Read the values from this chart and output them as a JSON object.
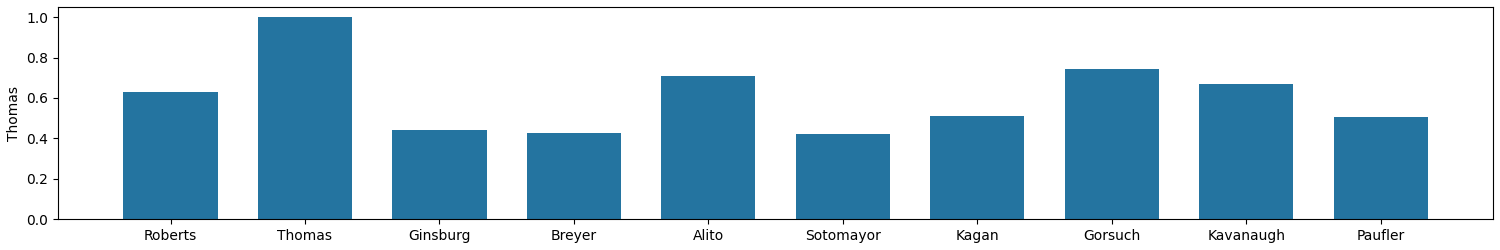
{
  "categories": [
    "Roberts",
    "Thomas",
    "Ginsburg",
    "Breyer",
    "Alito",
    "Sotomayor",
    "Kagan",
    "Gorsuch",
    "Kavanaugh",
    "Paufler"
  ],
  "values": [
    0.6309523809523809,
    1.0,
    0.44047619047619047,
    0.42857142857142855,
    0.7083333333333334,
    0.4226190476190476,
    0.5119047619047619,
    0.7440476190476191,
    0.6666666666666666,
    0.5059523809523809
  ],
  "bar_color": "#2474a0",
  "ylabel": "Thomas",
  "ylim": [
    0,
    1.05
  ],
  "yticks": [
    0.0,
    0.2,
    0.4,
    0.6,
    0.8,
    1.0
  ],
  "figsize": [
    15.0,
    2.5
  ],
  "dpi": 100
}
